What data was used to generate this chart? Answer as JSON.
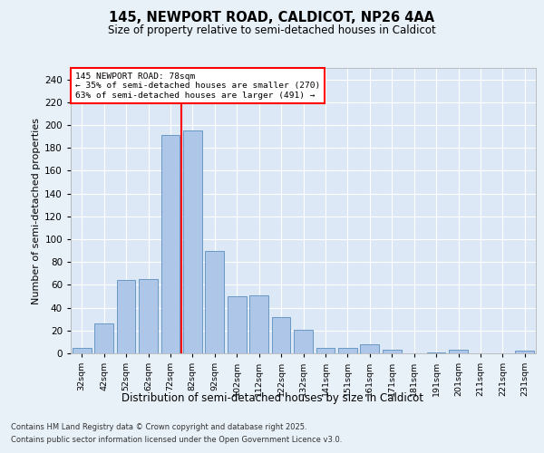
{
  "title_line1": "145, NEWPORT ROAD, CALDICOT, NP26 4AA",
  "title_line2": "Size of property relative to semi-detached houses in Caldicot",
  "xlabel": "Distribution of semi-detached houses by size in Caldicot",
  "ylabel": "Number of semi-detached properties",
  "categories": [
    "32sqm",
    "42sqm",
    "52sqm",
    "62sqm",
    "72sqm",
    "82sqm",
    "92sqm",
    "102sqm",
    "112sqm",
    "122sqm",
    "132sqm",
    "141sqm",
    "151sqm",
    "161sqm",
    "171sqm",
    "181sqm",
    "191sqm",
    "201sqm",
    "211sqm",
    "221sqm",
    "231sqm"
  ],
  "values": [
    5,
    26,
    64,
    65,
    191,
    195,
    90,
    50,
    51,
    32,
    21,
    5,
    5,
    8,
    3,
    0,
    1,
    3,
    0,
    0,
    2
  ],
  "bar_color": "#aec6e8",
  "bar_edge_color": "#5a8fc0",
  "property_line_x": 4.5,
  "annotation_line1": "145 NEWPORT ROAD: 78sqm",
  "annotation_line2": "← 35% of semi-detached houses are smaller (270)",
  "annotation_line3": "63% of semi-detached houses are larger (491) →",
  "ylim": [
    0,
    250
  ],
  "yticks": [
    0,
    20,
    40,
    60,
    80,
    100,
    120,
    140,
    160,
    180,
    200,
    220,
    240
  ],
  "footer_line1": "Contains HM Land Registry data © Crown copyright and database right 2025.",
  "footer_line2": "Contains public sector information licensed under the Open Government Licence v3.0.",
  "bg_color": "#e8f0f8",
  "plot_bg_color": "#dce8f5"
}
